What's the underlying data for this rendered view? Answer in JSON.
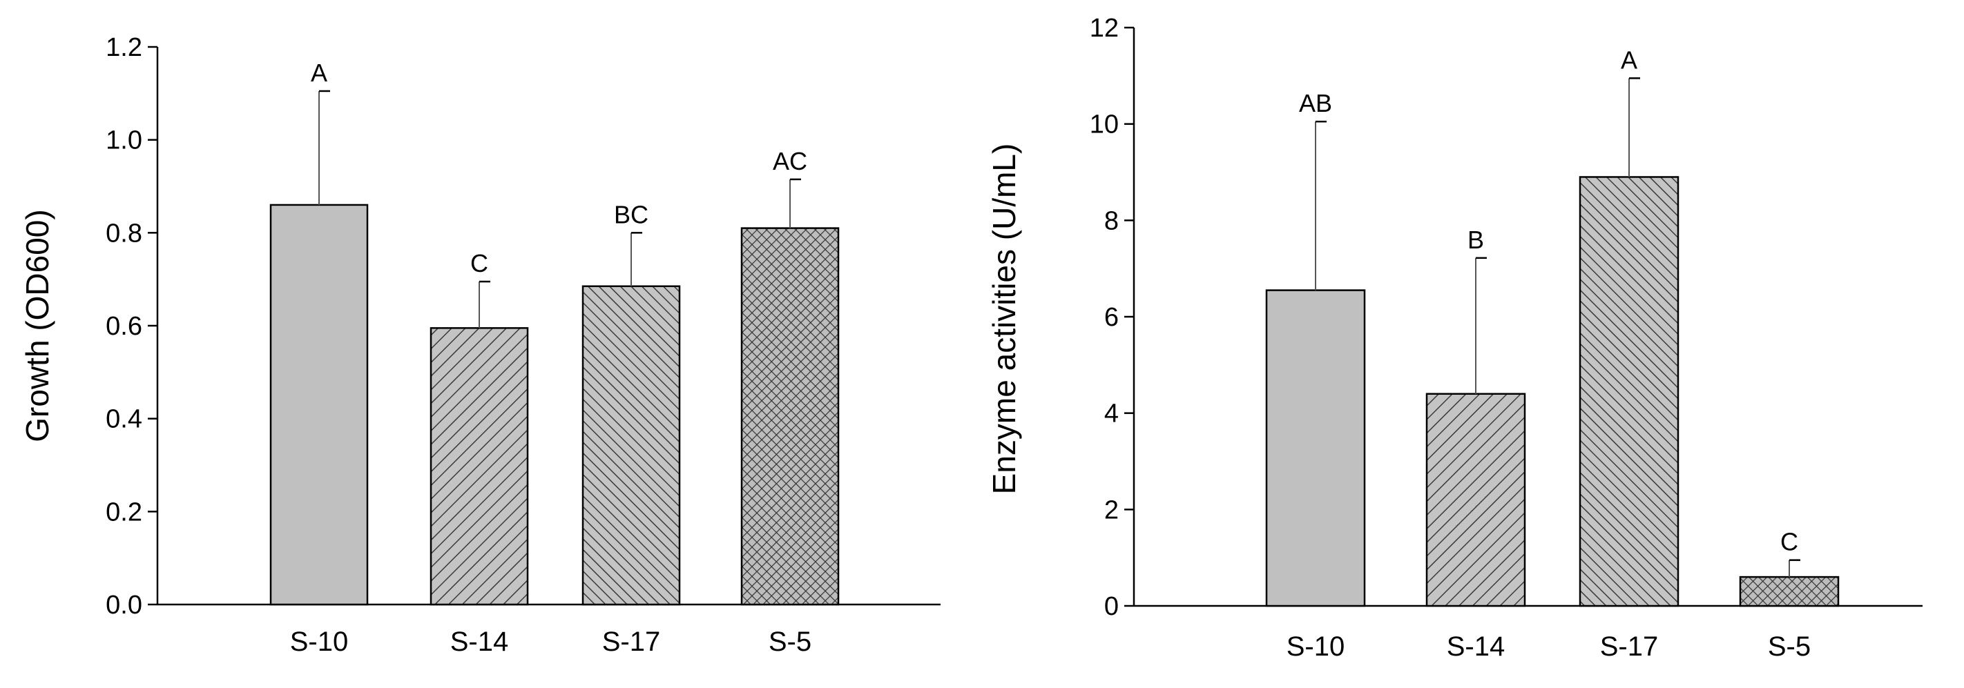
{
  "chart_data": [
    {
      "type": "bar",
      "title": "",
      "xlabel": "",
      "ylabel": "Growth (OD600)",
      "ylim": [
        0,
        1.2
      ],
      "yticks": [
        0.0,
        0.2,
        0.4,
        0.6,
        0.8,
        1.0,
        1.2
      ],
      "ytick_labels": [
        "0.0",
        "0.2",
        "0.4",
        "0.6",
        "0.8",
        "1.0",
        "1.2"
      ],
      "categories": [
        "S-10",
        "S-14",
        "S-17",
        "S-5"
      ],
      "values": [
        0.86,
        0.595,
        0.685,
        0.81
      ],
      "errors": [
        0.245,
        0.1,
        0.115,
        0.105
      ],
      "significance_labels": [
        "A",
        "C",
        "BC",
        "AC"
      ],
      "patterns": [
        "solid",
        "hatch-forward",
        "hatch-back",
        "crosshatch"
      ]
    },
    {
      "type": "bar",
      "title": "",
      "xlabel": "",
      "ylabel": "Enzyme activities (U/mL)",
      "ylim": [
        0,
        12
      ],
      "yticks": [
        0,
        2,
        4,
        6,
        8,
        10,
        12
      ],
      "ytick_labels": [
        "0",
        "2",
        "4",
        "6",
        "8",
        "10",
        "12"
      ],
      "categories": [
        "S-10",
        "S-14",
        "S-17",
        "S-5"
      ],
      "values": [
        6.55,
        4.4,
        8.9,
        0.6
      ],
      "errors": [
        3.5,
        2.82,
        2.05,
        0.35
      ],
      "significance_labels": [
        "AB",
        "B",
        "A",
        "C"
      ],
      "patterns": [
        "solid",
        "hatch-forward",
        "hatch-back",
        "crosshatch"
      ]
    }
  ]
}
